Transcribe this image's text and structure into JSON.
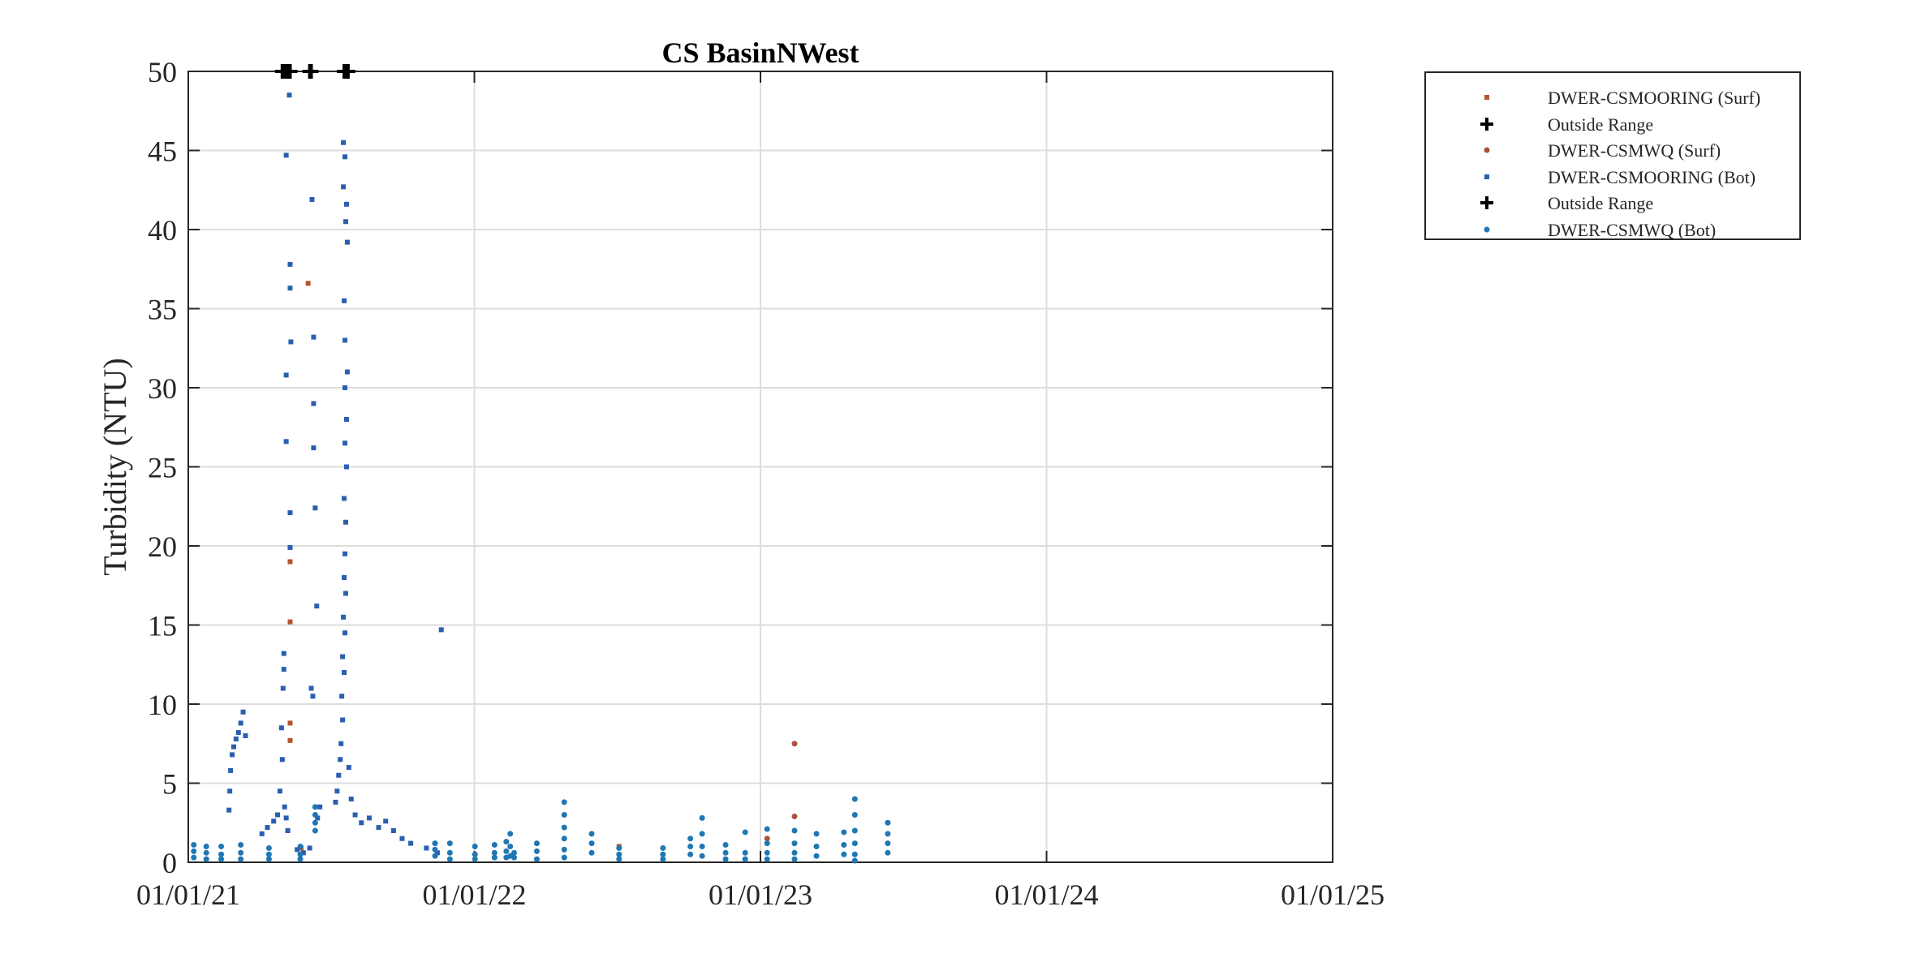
{
  "chart_data": {
    "type": "scatter",
    "title": "CS BasinNWest",
    "ylabel": "Turbidity (NTU)",
    "xlabel": "",
    "x_ticks": [
      "01/01/21",
      "01/01/22",
      "01/01/23",
      "01/01/24",
      "01/01/25"
    ],
    "y_ticks": [
      "0",
      "5",
      "10",
      "15",
      "20",
      "25",
      "30",
      "35",
      "40",
      "45",
      "50"
    ],
    "xlim": [
      "2021-01-01",
      "2025-01-01"
    ],
    "ylim": [
      0,
      50
    ],
    "grid": true,
    "legend_position": "outside top-right",
    "series": [
      {
        "name": "DWER-CSMOORING (Surf)",
        "marker": "square",
        "color": "#b5542b",
        "points": [
          [
            "2021-06-03",
            36.6
          ],
          [
            "2021-05-11",
            19.0
          ],
          [
            "2021-05-11",
            15.2
          ],
          [
            "2021-05-11",
            8.8
          ],
          [
            "2021-05-11",
            7.7
          ],
          [
            "2021-05-25",
            0.9
          ],
          [
            "2022-07-05",
            1.0
          ]
        ]
      },
      {
        "name": "Outside Range",
        "marker": "plus",
        "color": "#000000",
        "points": [
          [
            "2021-05-01",
            50
          ],
          [
            "2021-05-03",
            50
          ],
          [
            "2021-05-05",
            50
          ],
          [
            "2021-05-07",
            50
          ],
          [
            "2021-05-09",
            50
          ],
          [
            "2021-05-11",
            50
          ],
          [
            "2021-06-05",
            50
          ],
          [
            "2021-06-07",
            50
          ],
          [
            "2021-07-19",
            50
          ],
          [
            "2021-07-21",
            50
          ],
          [
            "2021-07-23",
            50
          ]
        ]
      },
      {
        "name": "DWER-CSMWQ (Surf)",
        "marker": "circle",
        "color": "#a8523a",
        "points": [
          [
            "2023-02-14",
            7.5
          ],
          [
            "2023-02-14",
            2.9
          ],
          [
            "2023-01-10",
            1.5
          ]
        ]
      },
      {
        "name": "DWER-CSMOORING (Bot)",
        "marker": "square",
        "color": "#2a5fb0",
        "points": [
          [
            "2021-05-10",
            48.5
          ],
          [
            "2021-05-06",
            44.7
          ],
          [
            "2021-05-11",
            37.8
          ],
          [
            "2021-05-11",
            36.3
          ],
          [
            "2021-05-12",
            32.9
          ],
          [
            "2021-05-06",
            30.8
          ],
          [
            "2021-05-06",
            26.6
          ],
          [
            "2021-05-11",
            22.1
          ],
          [
            "2021-05-11",
            19.9
          ],
          [
            "2021-06-08",
            41.9
          ],
          [
            "2021-06-10",
            33.2
          ],
          [
            "2021-06-10",
            29.0
          ],
          [
            "2021-06-10",
            26.2
          ],
          [
            "2021-06-12",
            22.4
          ],
          [
            "2021-06-14",
            16.2
          ],
          [
            "2021-06-07",
            11.0
          ],
          [
            "2021-06-09",
            10.5
          ],
          [
            "2021-07-18",
            45.5
          ],
          [
            "2021-07-20",
            44.6
          ],
          [
            "2021-07-18",
            42.7
          ],
          [
            "2021-07-22",
            41.6
          ],
          [
            "2021-07-21",
            40.5
          ],
          [
            "2021-07-23",
            39.2
          ],
          [
            "2021-07-19",
            35.5
          ],
          [
            "2021-07-20",
            33.0
          ],
          [
            "2021-07-23",
            31.0
          ],
          [
            "2021-07-20",
            30.0
          ],
          [
            "2021-07-22",
            28.0
          ],
          [
            "2021-07-20",
            26.5
          ],
          [
            "2021-07-22",
            25.0
          ],
          [
            "2021-07-19",
            23.0
          ],
          [
            "2021-07-21",
            21.5
          ],
          [
            "2021-07-20",
            19.5
          ],
          [
            "2021-07-19",
            18.0
          ],
          [
            "2021-07-21",
            17.0
          ],
          [
            "2021-07-18",
            15.5
          ],
          [
            "2021-07-20",
            14.5
          ],
          [
            "2021-07-17",
            13.0
          ],
          [
            "2021-07-19",
            12.0
          ],
          [
            "2021-07-16",
            10.5
          ],
          [
            "2021-07-17",
            9.0
          ],
          [
            "2021-07-15",
            7.5
          ],
          [
            "2021-07-14",
            6.5
          ],
          [
            "2021-07-12",
            5.5
          ],
          [
            "2021-07-10",
            4.5
          ],
          [
            "2021-07-08",
            3.8
          ],
          [
            "2021-07-25",
            6.0
          ],
          [
            "2021-07-28",
            4.0
          ],
          [
            "2021-08-02",
            3.0
          ],
          [
            "2021-08-10",
            2.5
          ],
          [
            "2021-08-20",
            2.8
          ],
          [
            "2021-09-01",
            2.2
          ],
          [
            "2021-09-10",
            2.6
          ],
          [
            "2021-09-20",
            2.0
          ],
          [
            "2021-10-01",
            1.5
          ],
          [
            "2021-10-12",
            1.2
          ],
          [
            "2021-11-20",
            14.7
          ],
          [
            "2021-11-01",
            0.9
          ],
          [
            "2021-11-15",
            0.6
          ],
          [
            "2021-02-22",
            3.3
          ],
          [
            "2021-02-23",
            4.5
          ],
          [
            "2021-02-24",
            5.8
          ],
          [
            "2021-02-26",
            6.8
          ],
          [
            "2021-02-28",
            7.3
          ],
          [
            "2021-03-03",
            7.8
          ],
          [
            "2021-03-06",
            8.2
          ],
          [
            "2021-03-09",
            8.8
          ],
          [
            "2021-03-12",
            9.5
          ],
          [
            "2021-03-15",
            8.0
          ],
          [
            "2021-04-05",
            1.8
          ],
          [
            "2021-04-12",
            2.2
          ],
          [
            "2021-04-20",
            2.6
          ],
          [
            "2021-04-25",
            3.0
          ],
          [
            "2021-04-28",
            4.5
          ],
          [
            "2021-05-01",
            6.5
          ],
          [
            "2021-04-30",
            8.5
          ],
          [
            "2021-05-02",
            11.0
          ],
          [
            "2021-05-03",
            12.2
          ],
          [
            "2021-05-03",
            13.2
          ],
          [
            "2021-05-04",
            3.5
          ],
          [
            "2021-05-06",
            2.8
          ],
          [
            "2021-05-08",
            2.0
          ],
          [
            "2021-05-20",
            0.8
          ],
          [
            "2021-05-28",
            0.6
          ],
          [
            "2021-06-05",
            0.9
          ],
          [
            "2021-06-15",
            2.8
          ],
          [
            "2021-06-18",
            3.5
          ]
        ]
      },
      {
        "name": "Outside Range",
        "marker": "plus",
        "color": "#000000",
        "points": [
          [
            "2021-05-02",
            50
          ],
          [
            "2021-05-04",
            50
          ],
          [
            "2021-05-08",
            50
          ],
          [
            "2021-05-10",
            50
          ],
          [
            "2021-06-06",
            50
          ],
          [
            "2021-07-20",
            50
          ],
          [
            "2021-07-22",
            50
          ],
          [
            "2021-07-24",
            50
          ]
        ]
      },
      {
        "name": "DWER-CSMWQ (Bot)",
        "marker": "circle",
        "color": "#1f77b4",
        "points": [
          [
            "2021-01-08",
            1.1
          ],
          [
            "2021-01-08",
            0.7
          ],
          [
            "2021-01-08",
            0.3
          ],
          [
            "2021-01-24",
            1.0
          ],
          [
            "2021-01-24",
            0.6
          ],
          [
            "2021-01-24",
            0.2
          ],
          [
            "2021-02-12",
            1.0
          ],
          [
            "2021-02-12",
            0.5
          ],
          [
            "2021-02-12",
            0.2
          ],
          [
            "2021-03-09",
            1.1
          ],
          [
            "2021-03-09",
            0.6
          ],
          [
            "2021-03-09",
            0.2
          ],
          [
            "2021-04-14",
            0.9
          ],
          [
            "2021-04-14",
            0.5
          ],
          [
            "2021-04-14",
            0.2
          ],
          [
            "2021-05-24",
            1.0
          ],
          [
            "2021-05-24",
            0.5
          ],
          [
            "2021-05-24",
            0.2
          ],
          [
            "2021-06-12",
            3.5
          ],
          [
            "2021-06-12",
            3.0
          ],
          [
            "2021-06-12",
            2.5
          ],
          [
            "2021-06-12",
            2.0
          ],
          [
            "2021-11-12",
            1.2
          ],
          [
            "2021-11-12",
            0.8
          ],
          [
            "2021-11-12",
            0.4
          ],
          [
            "2021-12-01",
            1.2
          ],
          [
            "2021-12-01",
            0.6
          ],
          [
            "2021-12-01",
            0.2
          ],
          [
            "2022-01-02",
            1.0
          ],
          [
            "2022-01-02",
            0.5
          ],
          [
            "2022-01-02",
            0.2
          ],
          [
            "2022-01-27",
            1.1
          ],
          [
            "2022-01-27",
            0.6
          ],
          [
            "2022-01-27",
            0.3
          ],
          [
            "2022-02-11",
            1.3
          ],
          [
            "2022-02-11",
            0.7
          ],
          [
            "2022-02-11",
            0.3
          ],
          [
            "2022-02-16",
            1.8
          ],
          [
            "2022-02-16",
            1.0
          ],
          [
            "2022-02-16",
            0.4
          ],
          [
            "2022-02-21",
            0.6
          ],
          [
            "2022-02-21",
            0.3
          ],
          [
            "2022-03-22",
            1.2
          ],
          [
            "2022-03-22",
            0.7
          ],
          [
            "2022-03-22",
            0.2
          ],
          [
            "2022-04-26",
            3.8
          ],
          [
            "2022-04-26",
            3.0
          ],
          [
            "2022-04-26",
            2.2
          ],
          [
            "2022-04-26",
            1.5
          ],
          [
            "2022-04-26",
            0.8
          ],
          [
            "2022-04-26",
            0.3
          ],
          [
            "2022-05-31",
            1.8
          ],
          [
            "2022-05-31",
            1.2
          ],
          [
            "2022-05-31",
            0.6
          ],
          [
            "2022-07-05",
            0.9
          ],
          [
            "2022-07-05",
            0.5
          ],
          [
            "2022-07-05",
            0.2
          ],
          [
            "2022-08-30",
            0.9
          ],
          [
            "2022-08-30",
            0.5
          ],
          [
            "2022-08-30",
            0.2
          ],
          [
            "2022-10-04",
            1.5
          ],
          [
            "2022-10-04",
            1.0
          ],
          [
            "2022-10-04",
            0.5
          ],
          [
            "2022-10-19",
            2.8
          ],
          [
            "2022-10-19",
            1.8
          ],
          [
            "2022-10-19",
            1.0
          ],
          [
            "2022-10-19",
            0.4
          ],
          [
            "2022-11-18",
            1.1
          ],
          [
            "2022-11-18",
            0.6
          ],
          [
            "2022-11-18",
            0.2
          ],
          [
            "2022-12-13",
            1.9
          ],
          [
            "2022-12-13",
            0.6
          ],
          [
            "2022-12-13",
            0.2
          ],
          [
            "2023-01-10",
            2.1
          ],
          [
            "2023-01-10",
            1.2
          ],
          [
            "2023-01-10",
            0.6
          ],
          [
            "2023-01-10",
            0.2
          ],
          [
            "2023-02-14",
            2.0
          ],
          [
            "2023-02-14",
            1.2
          ],
          [
            "2023-02-14",
            0.6
          ],
          [
            "2023-02-14",
            0.2
          ],
          [
            "2023-03-14",
            1.8
          ],
          [
            "2023-03-14",
            1.0
          ],
          [
            "2023-03-14",
            0.4
          ],
          [
            "2023-04-18",
            1.9
          ],
          [
            "2023-04-18",
            1.1
          ],
          [
            "2023-04-18",
            0.5
          ],
          [
            "2023-05-02",
            4.0
          ],
          [
            "2023-05-02",
            3.0
          ],
          [
            "2023-05-02",
            2.0
          ],
          [
            "2023-05-02",
            1.2
          ],
          [
            "2023-05-02",
            0.5
          ],
          [
            "2023-05-02",
            0.1
          ],
          [
            "2023-06-13",
            2.5
          ],
          [
            "2023-06-13",
            1.8
          ],
          [
            "2023-06-13",
            1.2
          ],
          [
            "2023-06-13",
            0.6
          ]
        ]
      }
    ]
  }
}
